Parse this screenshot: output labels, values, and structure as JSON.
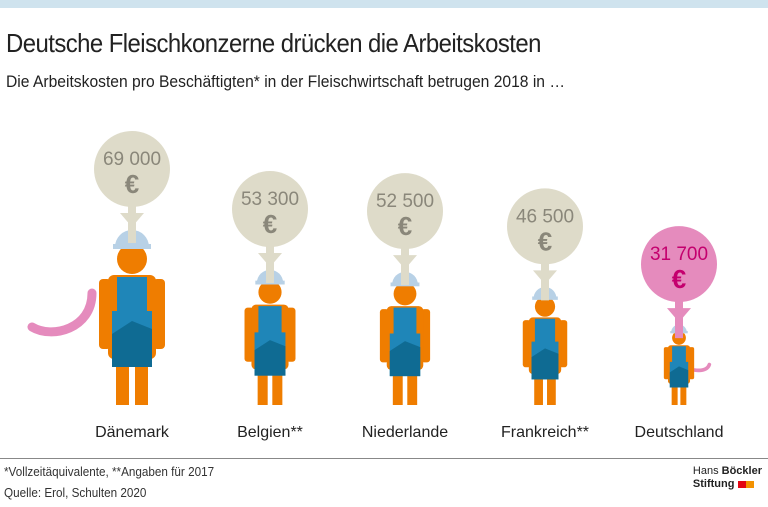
{
  "header": {
    "title": "Deutsche Fleischkonzerne drücken die Arbeitskosten",
    "subtitle": "Die Arbeitskosten pro Beschäftigten* in der Fleischwirtschaft betrugen 2018 in …"
  },
  "chart_data": {
    "type": "pictogram",
    "categories": [
      "Dänemark",
      "Belgien**",
      "Niederlande",
      "Frankreich**",
      "Deutschland"
    ],
    "values": [
      69000,
      53300,
      52500,
      46500,
      31700
    ],
    "value_labels": [
      "69 000",
      "53 300",
      "52 500",
      "46 500",
      "31 700"
    ],
    "unit": "€",
    "highlight": "Deutschland",
    "colors": {
      "bubble": "#dedbc9",
      "bubble_text": "#8a877a",
      "highlight_bubble": "#e58bbd",
      "highlight_text": "#c4006e",
      "skin": "#ef7d00",
      "apron": "#1f86b8",
      "apron_dark": "#0f6b93",
      "helmet": "#b8d1e6",
      "sausage": "#e58bbd"
    }
  },
  "footer": {
    "note": "*Vollzeitäquivalente,  **Angaben für 2017",
    "source": "Quelle: Erol, Schulten 2020"
  },
  "logo": {
    "line1a": "Hans",
    "line1b": "Böckler",
    "line2": "Stiftung",
    "colors": [
      "#e30613",
      "#f39200"
    ]
  }
}
